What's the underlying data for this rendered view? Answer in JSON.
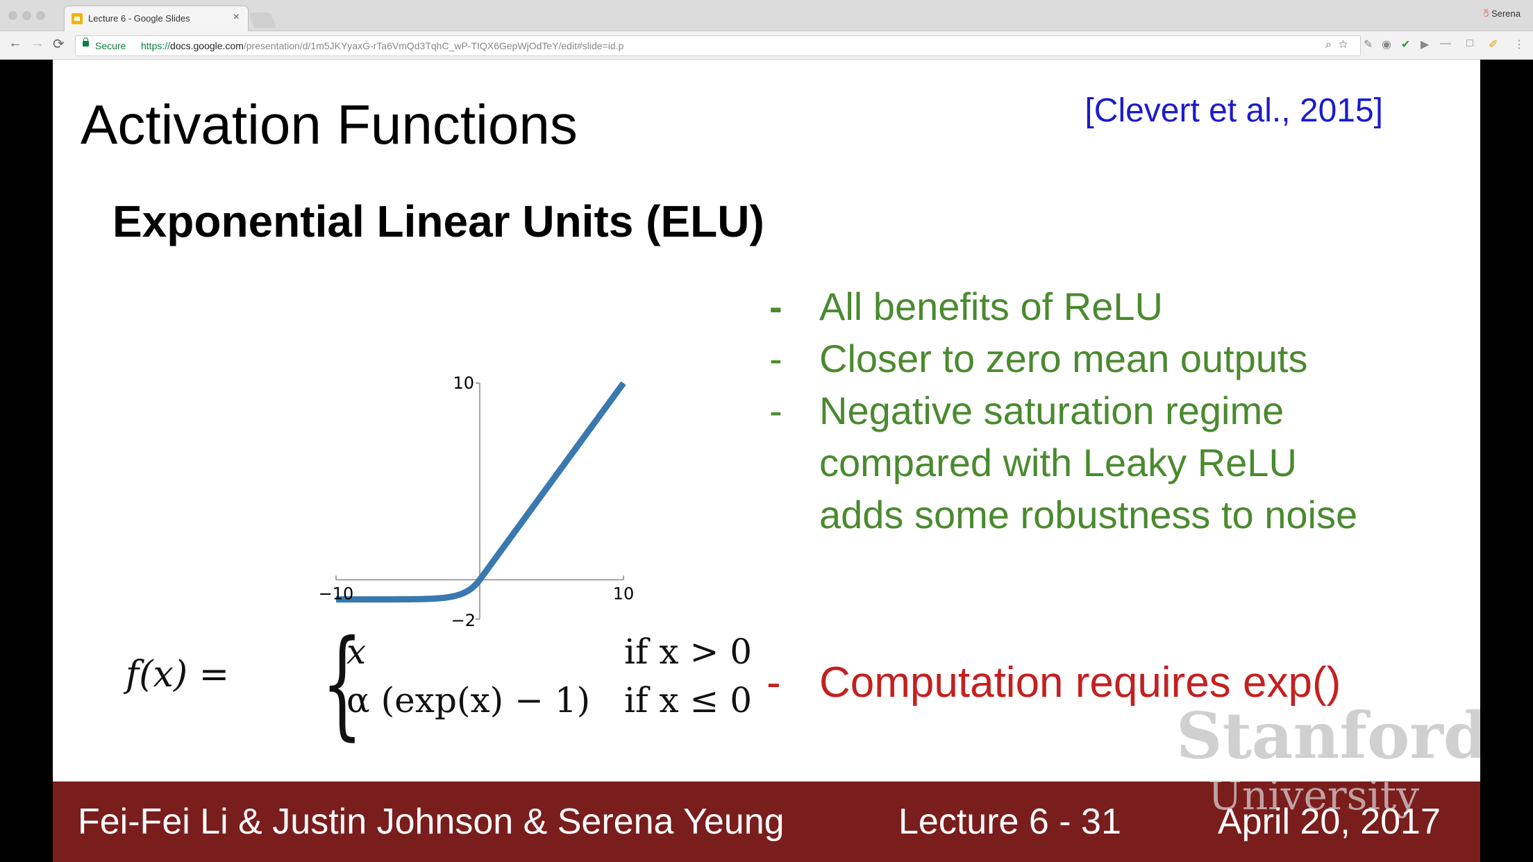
{
  "browser": {
    "tab_title": "Lecture 6 - Google Slides",
    "tab_close": "×",
    "profile_name": "Serena",
    "secure_label": "Secure",
    "url_protocol": "https://",
    "url_host": "docs.google.com",
    "url_path": "/presentation/d/1m5JKYyaxG-rTa6VmQd3TqhC_wP-TIQX6GepWjOdTeY/edit#slide=id.p",
    "nav_back": "←",
    "nav_forward": "→",
    "nav_reload": "⟳"
  },
  "slide": {
    "title": "Activation Functions",
    "citation": "[Clevert et al., 2015]",
    "subtitle": "Exponential Linear Units (ELU)",
    "bullets": [
      {
        "dash": "-",
        "text": "All benefits of ReLU"
      },
      {
        "dash": "-",
        "text": "Closer to zero mean outputs"
      },
      {
        "dash": "-",
        "text": "Negative saturation regime"
      },
      {
        "dash": "",
        "text": "compared with Leaky ReLU"
      },
      {
        "dash": "",
        "text": "adds some robustness to noise"
      }
    ],
    "exp_bullet": {
      "dash": "-",
      "text": "Computation requires exp()"
    },
    "formula": {
      "lhs": "f(x) =",
      "case1_value": "x",
      "case1_condition": "if x > 0",
      "case2_value": "α (exp(x) − 1)",
      "case2_condition": "if x ≤ 0"
    },
    "watermark": {
      "line1": "Stanford",
      "line2": "University"
    },
    "footer": {
      "authors": "Fei-Fei Li & Justin Johnson & Serena Yeung",
      "lecture": "Lecture 6 - 31",
      "date": "April 20, 2017"
    },
    "plot": {
      "tick_labels": {
        "x_min": "−10",
        "x_max": "10",
        "y_max": "10",
        "y_min": "−2"
      },
      "xlim": [
        -10,
        10
      ],
      "ylim": [
        -2,
        10
      ],
      "alpha": 1,
      "line_color": "#3a78b0"
    }
  },
  "colors": {
    "footer_bg": "#7a1d1d",
    "bullet_green": "#4a8a2e",
    "exp_red": "#c42020",
    "citation_blue": "#1a1acf"
  }
}
